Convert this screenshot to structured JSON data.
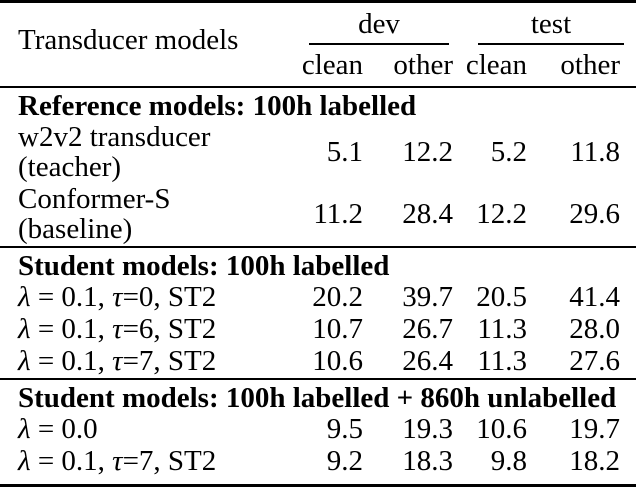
{
  "table": {
    "title_col": "Transducer models",
    "col_groups": [
      {
        "label": "dev"
      },
      {
        "label": "test"
      }
    ],
    "sub_cols": [
      "clean",
      "other",
      "clean",
      "other"
    ],
    "sections": [
      {
        "header": "Reference models: 100h labelled",
        "rows": [
          {
            "model": "w2v2 transducer (teacher)",
            "values": [
              "5.1",
              "12.2",
              "5.2",
              "11.8"
            ]
          },
          {
            "model": "Conformer-S (baseline)",
            "values": [
              "11.2",
              "28.4",
              "12.2",
              "29.6"
            ]
          }
        ]
      },
      {
        "header": "Student models: 100h labelled",
        "rows": [
          {
            "model": "λ = 0.1, τ=0, ST2",
            "values": [
              "20.2",
              "39.7",
              "20.5",
              "41.4"
            ]
          },
          {
            "model": "λ = 0.1, τ=6, ST2",
            "values": [
              "10.7",
              "26.7",
              "11.3",
              "28.0"
            ]
          },
          {
            "model": "λ = 0.1, τ=7, ST2",
            "values": [
              "10.6",
              "26.4",
              "11.3",
              "27.6"
            ]
          }
        ]
      },
      {
        "header": "Student models: 100h labelled + 860h unlabelled",
        "rows": [
          {
            "model": "λ = 0.0",
            "values": [
              "9.5",
              "19.3",
              "10.6",
              "19.7"
            ]
          },
          {
            "model": "λ = 0.1, τ=7, ST2",
            "values": [
              "9.2",
              "18.3",
              "9.8",
              "18.2"
            ]
          }
        ]
      }
    ]
  },
  "colors": {
    "text": "#000000",
    "background": "#ffffff",
    "rule": "#000000"
  }
}
